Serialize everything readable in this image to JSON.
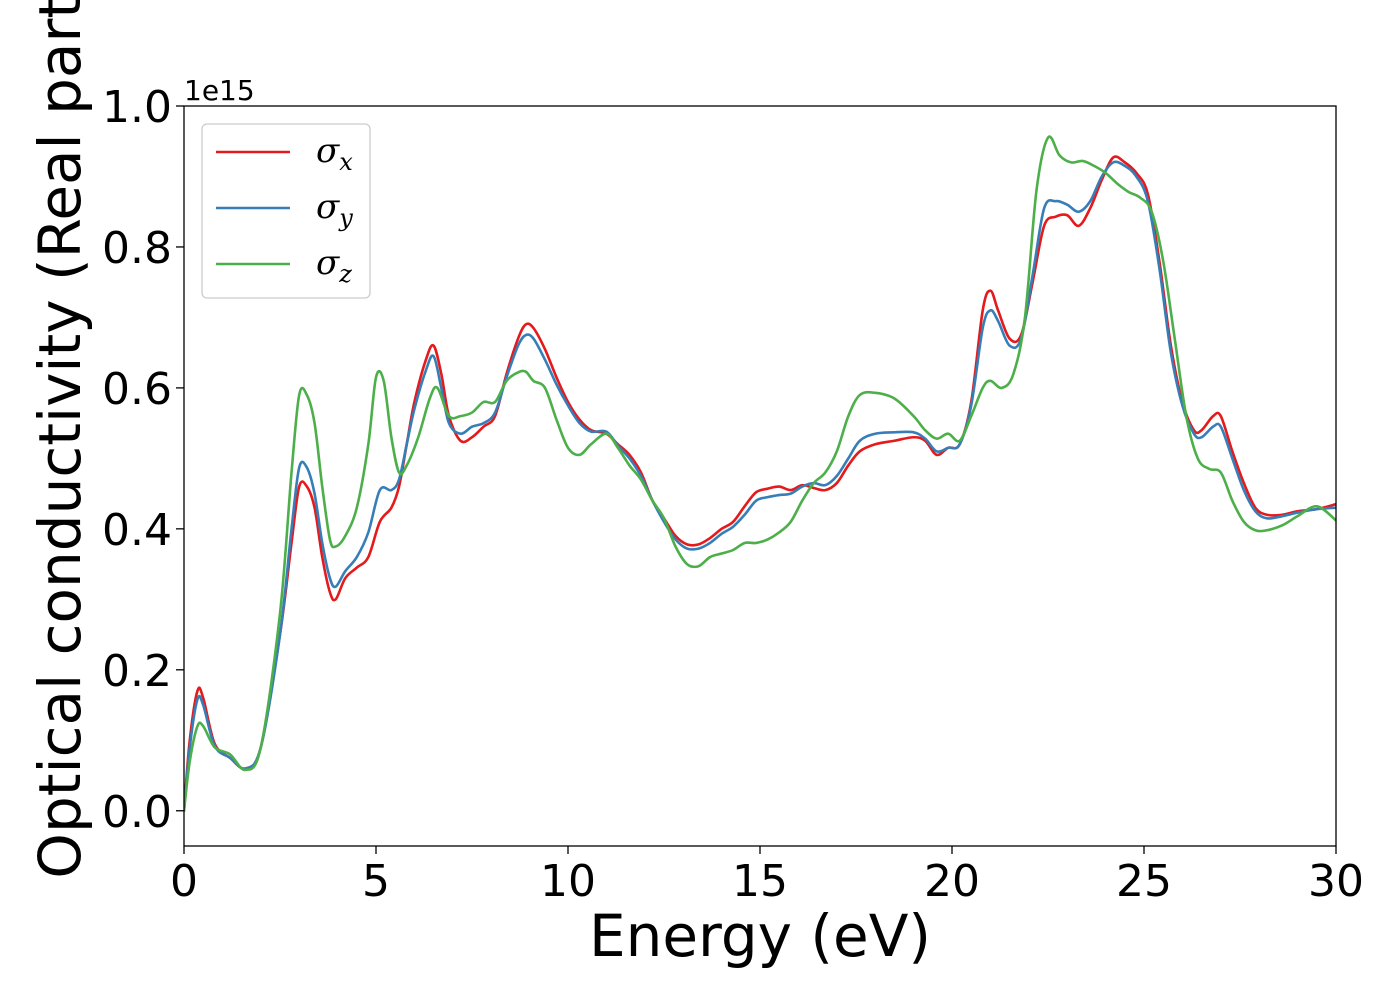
{
  "chart_data": {
    "type": "line",
    "title": "",
    "xlabel": "Energy (eV)",
    "ylabel": "Optical conductivity (Real part)",
    "y_offset_text": "1e15",
    "xlim": [
      0,
      30
    ],
    "ylim": [
      -0.05,
      1.0
    ],
    "x_ticks": [
      0,
      5,
      10,
      15,
      20,
      25,
      30
    ],
    "x_tick_labels": [
      "0",
      "5",
      "10",
      "15",
      "20",
      "25",
      "30"
    ],
    "y_ticks": [
      0.0,
      0.2,
      0.4,
      0.6,
      0.8,
      1.0
    ],
    "y_tick_labels": [
      "0.0",
      "0.2",
      "0.4",
      "0.6",
      "0.8",
      "1.0"
    ],
    "grid": false,
    "legend_position": "upper-left",
    "legend": [
      {
        "symbol": "σ",
        "subscript": "x",
        "color": "#e41a1c"
      },
      {
        "symbol": "σ",
        "subscript": "y",
        "color": "#377eb8"
      },
      {
        "symbol": "σ",
        "subscript": "z",
        "color": "#4daf4a"
      }
    ],
    "series": [
      {
        "label": "σx",
        "color": "#e41a1c",
        "points": [
          [
            0,
            0
          ],
          [
            0.15,
            0.1
          ],
          [
            0.35,
            0.17
          ],
          [
            0.5,
            0.16
          ],
          [
            0.8,
            0.095
          ],
          [
            1.2,
            0.075
          ],
          [
            1.6,
            0.06
          ],
          [
            2.0,
            0.09
          ],
          [
            2.5,
            0.25
          ],
          [
            2.8,
            0.38
          ],
          [
            3.0,
            0.46
          ],
          [
            3.2,
            0.46
          ],
          [
            3.4,
            0.43
          ],
          [
            3.6,
            0.36
          ],
          [
            3.8,
            0.31
          ],
          [
            3.95,
            0.3
          ],
          [
            4.2,
            0.33
          ],
          [
            4.5,
            0.345
          ],
          [
            4.8,
            0.36
          ],
          [
            5.1,
            0.41
          ],
          [
            5.4,
            0.43
          ],
          [
            5.6,
            0.46
          ],
          [
            5.8,
            0.52
          ],
          [
            6.0,
            0.58
          ],
          [
            6.3,
            0.64
          ],
          [
            6.5,
            0.66
          ],
          [
            6.7,
            0.62
          ],
          [
            6.9,
            0.56
          ],
          [
            7.2,
            0.525
          ],
          [
            7.5,
            0.53
          ],
          [
            7.8,
            0.545
          ],
          [
            8.1,
            0.56
          ],
          [
            8.4,
            0.62
          ],
          [
            8.7,
            0.67
          ],
          [
            8.9,
            0.69
          ],
          [
            9.1,
            0.685
          ],
          [
            9.4,
            0.655
          ],
          [
            9.7,
            0.615
          ],
          [
            10.0,
            0.58
          ],
          [
            10.3,
            0.555
          ],
          [
            10.6,
            0.54
          ],
          [
            11.0,
            0.535
          ],
          [
            11.3,
            0.52
          ],
          [
            11.6,
            0.505
          ],
          [
            11.9,
            0.48
          ],
          [
            12.2,
            0.44
          ],
          [
            12.5,
            0.415
          ],
          [
            12.8,
            0.39
          ],
          [
            13.1,
            0.378
          ],
          [
            13.4,
            0.378
          ],
          [
            13.7,
            0.387
          ],
          [
            14.0,
            0.4
          ],
          [
            14.3,
            0.41
          ],
          [
            14.6,
            0.432
          ],
          [
            14.9,
            0.452
          ],
          [
            15.2,
            0.457
          ],
          [
            15.5,
            0.46
          ],
          [
            15.8,
            0.455
          ],
          [
            16.1,
            0.462
          ],
          [
            16.4,
            0.458
          ],
          [
            16.7,
            0.455
          ],
          [
            17.0,
            0.465
          ],
          [
            17.3,
            0.49
          ],
          [
            17.6,
            0.51
          ],
          [
            18.0,
            0.52
          ],
          [
            18.5,
            0.525
          ],
          [
            19.0,
            0.53
          ],
          [
            19.3,
            0.525
          ],
          [
            19.6,
            0.505
          ],
          [
            19.9,
            0.515
          ],
          [
            20.2,
            0.52
          ],
          [
            20.5,
            0.58
          ],
          [
            20.8,
            0.71
          ],
          [
            21.0,
            0.738
          ],
          [
            21.2,
            0.71
          ],
          [
            21.5,
            0.67
          ],
          [
            21.8,
            0.675
          ],
          [
            22.1,
            0.75
          ],
          [
            22.4,
            0.83
          ],
          [
            22.7,
            0.843
          ],
          [
            23.0,
            0.845
          ],
          [
            23.3,
            0.83
          ],
          [
            23.6,
            0.855
          ],
          [
            23.9,
            0.895
          ],
          [
            24.2,
            0.927
          ],
          [
            24.5,
            0.92
          ],
          [
            24.8,
            0.905
          ],
          [
            25.1,
            0.875
          ],
          [
            25.4,
            0.78
          ],
          [
            25.7,
            0.66
          ],
          [
            26.0,
            0.58
          ],
          [
            26.3,
            0.54
          ],
          [
            26.5,
            0.54
          ],
          [
            26.8,
            0.56
          ],
          [
            27.0,
            0.56
          ],
          [
            27.3,
            0.51
          ],
          [
            27.6,
            0.465
          ],
          [
            27.9,
            0.43
          ],
          [
            28.2,
            0.42
          ],
          [
            28.6,
            0.42
          ],
          [
            29.0,
            0.425
          ],
          [
            29.5,
            0.428
          ],
          [
            30.0,
            0.435
          ]
        ]
      },
      {
        "label": "σy",
        "color": "#377eb8",
        "points": [
          [
            0,
            0
          ],
          [
            0.15,
            0.09
          ],
          [
            0.35,
            0.158
          ],
          [
            0.5,
            0.15
          ],
          [
            0.8,
            0.092
          ],
          [
            1.2,
            0.075
          ],
          [
            1.6,
            0.06
          ],
          [
            2.0,
            0.09
          ],
          [
            2.5,
            0.25
          ],
          [
            2.8,
            0.4
          ],
          [
            3.0,
            0.487
          ],
          [
            3.2,
            0.487
          ],
          [
            3.4,
            0.45
          ],
          [
            3.6,
            0.38
          ],
          [
            3.8,
            0.33
          ],
          [
            3.95,
            0.318
          ],
          [
            4.2,
            0.34
          ],
          [
            4.5,
            0.36
          ],
          [
            4.8,
            0.395
          ],
          [
            5.1,
            0.455
          ],
          [
            5.4,
            0.455
          ],
          [
            5.6,
            0.47
          ],
          [
            5.8,
            0.52
          ],
          [
            6.0,
            0.57
          ],
          [
            6.3,
            0.625
          ],
          [
            6.5,
            0.645
          ],
          [
            6.7,
            0.6
          ],
          [
            6.9,
            0.55
          ],
          [
            7.2,
            0.535
          ],
          [
            7.5,
            0.545
          ],
          [
            7.8,
            0.55
          ],
          [
            8.1,
            0.565
          ],
          [
            8.4,
            0.615
          ],
          [
            8.7,
            0.66
          ],
          [
            8.9,
            0.675
          ],
          [
            9.1,
            0.67
          ],
          [
            9.4,
            0.64
          ],
          [
            9.7,
            0.605
          ],
          [
            10.0,
            0.575
          ],
          [
            10.3,
            0.55
          ],
          [
            10.6,
            0.538
          ],
          [
            11.0,
            0.538
          ],
          [
            11.3,
            0.518
          ],
          [
            11.6,
            0.5
          ],
          [
            11.9,
            0.475
          ],
          [
            12.2,
            0.44
          ],
          [
            12.5,
            0.41
          ],
          [
            12.8,
            0.385
          ],
          [
            13.1,
            0.372
          ],
          [
            13.4,
            0.372
          ],
          [
            13.7,
            0.38
          ],
          [
            14.0,
            0.393
          ],
          [
            14.3,
            0.403
          ],
          [
            14.6,
            0.42
          ],
          [
            14.9,
            0.44
          ],
          [
            15.2,
            0.445
          ],
          [
            15.5,
            0.448
          ],
          [
            15.8,
            0.45
          ],
          [
            16.1,
            0.46
          ],
          [
            16.4,
            0.465
          ],
          [
            16.7,
            0.462
          ],
          [
            17.0,
            0.475
          ],
          [
            17.3,
            0.5
          ],
          [
            17.6,
            0.525
          ],
          [
            18.0,
            0.535
          ],
          [
            18.5,
            0.537
          ],
          [
            19.0,
            0.537
          ],
          [
            19.3,
            0.528
          ],
          [
            19.6,
            0.51
          ],
          [
            19.9,
            0.515
          ],
          [
            20.2,
            0.52
          ],
          [
            20.5,
            0.575
          ],
          [
            20.8,
            0.685
          ],
          [
            21.0,
            0.71
          ],
          [
            21.2,
            0.695
          ],
          [
            21.5,
            0.66
          ],
          [
            21.8,
            0.67
          ],
          [
            22.1,
            0.76
          ],
          [
            22.4,
            0.855
          ],
          [
            22.7,
            0.865
          ],
          [
            23.0,
            0.86
          ],
          [
            23.3,
            0.85
          ],
          [
            23.6,
            0.865
          ],
          [
            23.9,
            0.9
          ],
          [
            24.2,
            0.92
          ],
          [
            24.5,
            0.915
          ],
          [
            24.8,
            0.9
          ],
          [
            25.1,
            0.865
          ],
          [
            25.4,
            0.77
          ],
          [
            25.7,
            0.65
          ],
          [
            26.0,
            0.575
          ],
          [
            26.3,
            0.535
          ],
          [
            26.5,
            0.53
          ],
          [
            26.8,
            0.545
          ],
          [
            27.0,
            0.545
          ],
          [
            27.3,
            0.5
          ],
          [
            27.6,
            0.455
          ],
          [
            27.9,
            0.425
          ],
          [
            28.2,
            0.415
          ],
          [
            28.6,
            0.418
          ],
          [
            29.0,
            0.423
          ],
          [
            29.5,
            0.428
          ],
          [
            30.0,
            0.43
          ]
        ]
      },
      {
        "label": "σz",
        "color": "#4daf4a",
        "points": [
          [
            0,
            0
          ],
          [
            0.15,
            0.07
          ],
          [
            0.35,
            0.12
          ],
          [
            0.5,
            0.12
          ],
          [
            0.8,
            0.09
          ],
          [
            1.2,
            0.08
          ],
          [
            1.6,
            0.058
          ],
          [
            2.0,
            0.09
          ],
          [
            2.5,
            0.28
          ],
          [
            2.8,
            0.48
          ],
          [
            3.0,
            0.59
          ],
          [
            3.2,
            0.59
          ],
          [
            3.4,
            0.55
          ],
          [
            3.6,
            0.46
          ],
          [
            3.8,
            0.385
          ],
          [
            3.95,
            0.375
          ],
          [
            4.2,
            0.39
          ],
          [
            4.5,
            0.43
          ],
          [
            4.8,
            0.52
          ],
          [
            5.0,
            0.615
          ],
          [
            5.2,
            0.61
          ],
          [
            5.4,
            0.53
          ],
          [
            5.6,
            0.48
          ],
          [
            5.8,
            0.49
          ],
          [
            6.1,
            0.53
          ],
          [
            6.4,
            0.585
          ],
          [
            6.6,
            0.6
          ],
          [
            6.9,
            0.56
          ],
          [
            7.2,
            0.56
          ],
          [
            7.5,
            0.565
          ],
          [
            7.8,
            0.58
          ],
          [
            8.1,
            0.58
          ],
          [
            8.4,
            0.61
          ],
          [
            8.7,
            0.622
          ],
          [
            8.9,
            0.623
          ],
          [
            9.1,
            0.61
          ],
          [
            9.4,
            0.6
          ],
          [
            9.7,
            0.555
          ],
          [
            10.0,
            0.515
          ],
          [
            10.3,
            0.505
          ],
          [
            10.6,
            0.52
          ],
          [
            11.0,
            0.535
          ],
          [
            11.3,
            0.515
          ],
          [
            11.6,
            0.49
          ],
          [
            11.9,
            0.47
          ],
          [
            12.2,
            0.44
          ],
          [
            12.5,
            0.415
          ],
          [
            12.8,
            0.375
          ],
          [
            13.1,
            0.35
          ],
          [
            13.4,
            0.347
          ],
          [
            13.7,
            0.36
          ],
          [
            14.0,
            0.365
          ],
          [
            14.3,
            0.37
          ],
          [
            14.6,
            0.38
          ],
          [
            14.9,
            0.38
          ],
          [
            15.2,
            0.385
          ],
          [
            15.5,
            0.395
          ],
          [
            15.8,
            0.41
          ],
          [
            16.1,
            0.44
          ],
          [
            16.4,
            0.465
          ],
          [
            16.7,
            0.48
          ],
          [
            17.0,
            0.51
          ],
          [
            17.3,
            0.56
          ],
          [
            17.6,
            0.59
          ],
          [
            18.0,
            0.593
          ],
          [
            18.5,
            0.585
          ],
          [
            19.0,
            0.56
          ],
          [
            19.3,
            0.54
          ],
          [
            19.6,
            0.528
          ],
          [
            19.9,
            0.535
          ],
          [
            20.2,
            0.525
          ],
          [
            20.5,
            0.56
          ],
          [
            20.8,
            0.6
          ],
          [
            21.0,
            0.61
          ],
          [
            21.3,
            0.6
          ],
          [
            21.6,
            0.62
          ],
          [
            21.9,
            0.7
          ],
          [
            22.2,
            0.88
          ],
          [
            22.5,
            0.955
          ],
          [
            22.8,
            0.93
          ],
          [
            23.1,
            0.92
          ],
          [
            23.4,
            0.922
          ],
          [
            23.7,
            0.915
          ],
          [
            24.0,
            0.905
          ],
          [
            24.3,
            0.89
          ],
          [
            24.6,
            0.878
          ],
          [
            24.9,
            0.87
          ],
          [
            25.2,
            0.85
          ],
          [
            25.5,
            0.78
          ],
          [
            25.8,
            0.67
          ],
          [
            26.1,
            0.56
          ],
          [
            26.4,
            0.5
          ],
          [
            26.7,
            0.485
          ],
          [
            27.0,
            0.48
          ],
          [
            27.3,
            0.44
          ],
          [
            27.6,
            0.41
          ],
          [
            27.9,
            0.398
          ],
          [
            28.2,
            0.398
          ],
          [
            28.6,
            0.405
          ],
          [
            29.0,
            0.418
          ],
          [
            29.5,
            0.432
          ],
          [
            30.0,
            0.412
          ]
        ]
      }
    ]
  }
}
